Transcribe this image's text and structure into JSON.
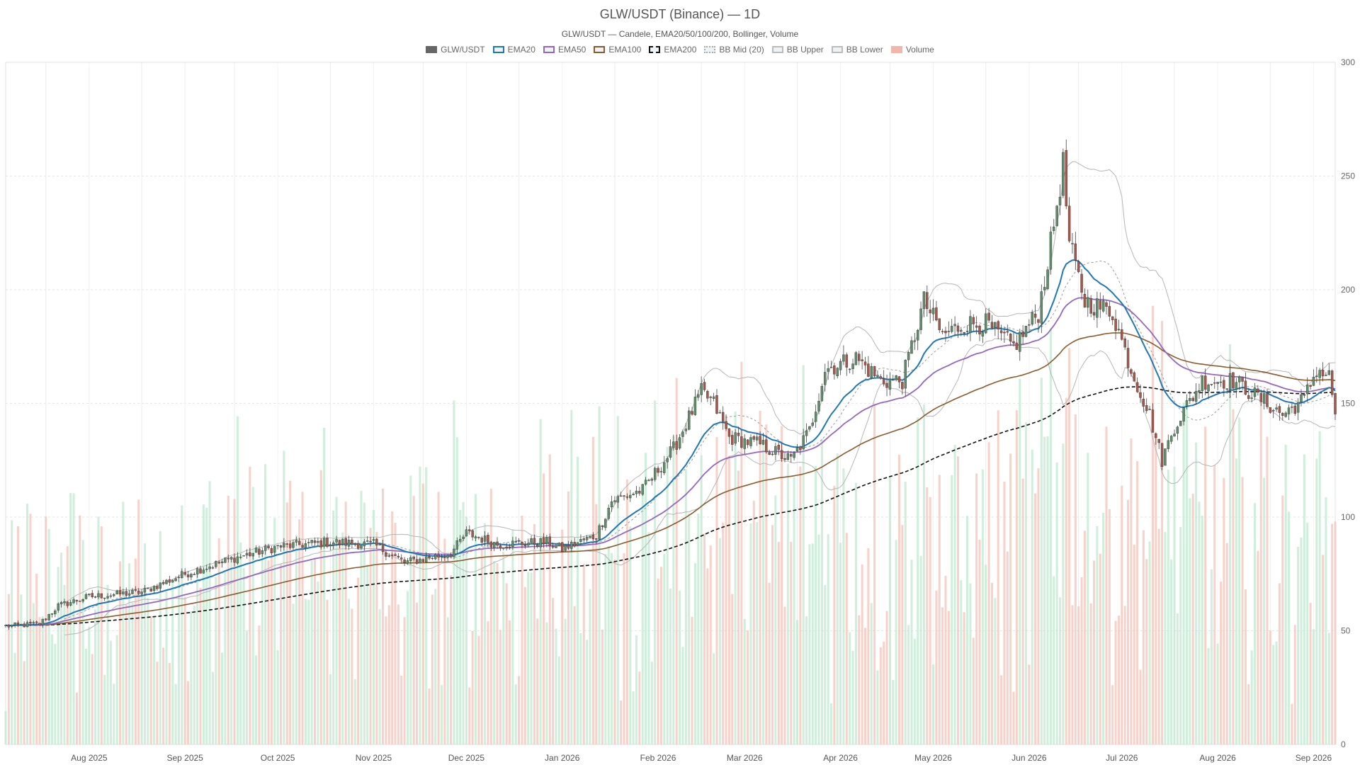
{
  "chart_data": {
    "type": "candlestick",
    "title": "GLW/USDT (Binance) — 1D",
    "subtitle": "GLW/USDT — Candele, EMA20/50/100/200, Bollinger, Volume",
    "legend": [
      {
        "label": "GLW/USDT",
        "color": "#666666",
        "style": "solid"
      },
      {
        "label": "EMA20",
        "color": "#1f77b4",
        "style": "line"
      },
      {
        "label": "EMA50",
        "color": "#9467bd",
        "style": "line"
      },
      {
        "label": "EMA100",
        "color": "#8c5a2b",
        "style": "line"
      },
      {
        "label": "EMA200",
        "color": "#111111",
        "style": "dashed"
      },
      {
        "label": "BB Mid (20)",
        "color": "#aaaaaa",
        "style": "dotted"
      },
      {
        "label": "BB Upper",
        "color": "#bbbbbb",
        "style": "line"
      },
      {
        "label": "BB Lower",
        "color": "#bbbbbb",
        "style": "line"
      },
      {
        "label": "Volume",
        "color": "#f4b6aa",
        "style": "solid"
      }
    ],
    "x_range": [
      "2025-07-19",
      "2026-09-22"
    ],
    "x_ticks": [
      "Aug 2025",
      "Sep 2025",
      "Oct 2025",
      "Nov 2025",
      "Dec 2025",
      "Jan 2026",
      "Feb 2026",
      "Mar 2026",
      "Apr 2026",
      "May 2026",
      "Jun 2026",
      "Jul 2026",
      "Aug 2026",
      "Sep 2026"
    ],
    "y_ticks": [
      "0",
      "50",
      "100",
      "150",
      "200",
      "250",
      "300"
    ],
    "ylim": [
      0,
      300
    ],
    "y_axis_side": "right",
    "grid": true,
    "legend_position": "top-center",
    "colors": {
      "up": "#5f8f6a",
      "down": "#a8574b",
      "volume_up": "#bfe8cf",
      "volume_down": "#f4c3b8",
      "ema20": "#1f77b4",
      "ema50": "#9467bd",
      "ema100": "#8c5a2b",
      "ema200": "#111111",
      "bb": "#b5b5b5"
    },
    "close_keypoints": [
      [
        "2025-07-19",
        52
      ],
      [
        "2025-07-30",
        53
      ],
      [
        "2025-08-05",
        61
      ],
      [
        "2025-08-15",
        65
      ],
      [
        "2025-09-01",
        67
      ],
      [
        "2025-09-15",
        75
      ],
      [
        "2025-10-01",
        82
      ],
      [
        "2025-10-15",
        87
      ],
      [
        "2025-11-01",
        89
      ],
      [
        "2025-11-15",
        88
      ],
      [
        "2025-11-25",
        80
      ],
      [
        "2025-12-10",
        84
      ],
      [
        "2025-12-15",
        93
      ],
      [
        "2025-12-25",
        88
      ],
      [
        "2026-01-10",
        89
      ],
      [
        "2026-01-15",
        86
      ],
      [
        "2026-01-26",
        92
      ],
      [
        "2026-01-31",
        107
      ],
      [
        "2026-02-10",
        112
      ],
      [
        "2026-02-20",
        130
      ],
      [
        "2026-03-01",
        155
      ],
      [
        "2026-03-05",
        150
      ],
      [
        "2026-03-10",
        135
      ],
      [
        "2026-03-20",
        132
      ],
      [
        "2026-03-30",
        125
      ],
      [
        "2026-04-05",
        138
      ],
      [
        "2026-04-10",
        165
      ],
      [
        "2026-04-20",
        170
      ],
      [
        "2026-04-28",
        160
      ],
      [
        "2026-05-05",
        160
      ],
      [
        "2026-05-12",
        195
      ],
      [
        "2026-05-18",
        180
      ],
      [
        "2026-05-25",
        185
      ],
      [
        "2026-06-01",
        185
      ],
      [
        "2026-06-05",
        180
      ],
      [
        "2026-06-10",
        175
      ],
      [
        "2026-06-18",
        190
      ],
      [
        "2026-06-22",
        220
      ],
      [
        "2026-06-26",
        255
      ],
      [
        "2026-06-28",
        220
      ],
      [
        "2026-07-03",
        195
      ],
      [
        "2026-07-12",
        190
      ],
      [
        "2026-07-18",
        165
      ],
      [
        "2026-07-24",
        145
      ],
      [
        "2026-07-28",
        125
      ],
      [
        "2026-08-01",
        140
      ],
      [
        "2026-08-10",
        160
      ],
      [
        "2026-08-20",
        160
      ],
      [
        "2026-08-31",
        150
      ],
      [
        "2026-09-05",
        145
      ],
      [
        "2026-09-12",
        152
      ],
      [
        "2026-09-16",
        165
      ],
      [
        "2026-09-20",
        162
      ],
      [
        "2026-09-22",
        146
      ]
    ]
  }
}
